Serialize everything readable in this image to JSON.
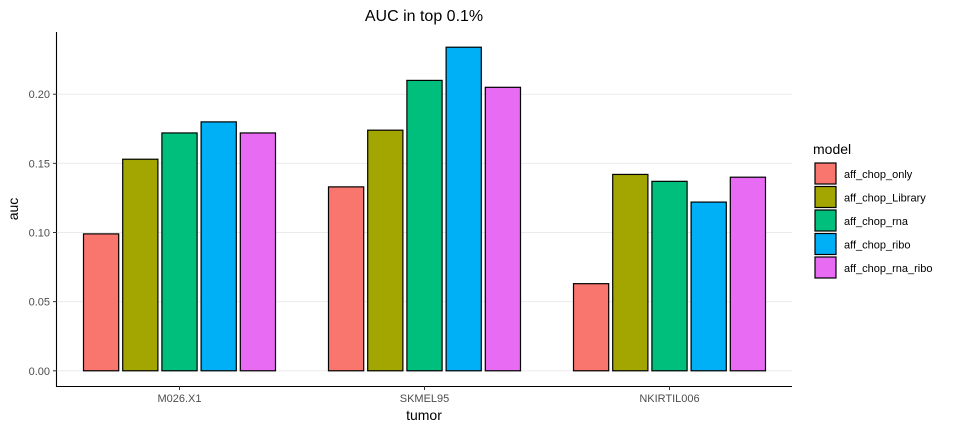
{
  "chart_data": {
    "type": "bar",
    "title": "AUC in top 0.1%",
    "xlabel": "tumor",
    "ylabel": "auc",
    "ylim": [
      -0.011,
      0.245
    ],
    "yticks": [
      "0.00",
      "0.05",
      "0.10",
      "0.15",
      "0.20"
    ],
    "ytick_values": [
      0,
      0.05,
      0.1,
      0.15,
      0.2
    ],
    "grid": "horizontal",
    "legend_position": "right",
    "legend_title": "model",
    "categories": [
      "M026.X1",
      "SKMEL95",
      "NKIRTIL006"
    ],
    "series": [
      {
        "name": "aff_chop_only",
        "color": "#F8766D",
        "values": [
          0.099,
          0.133,
          0.063
        ]
      },
      {
        "name": "aff_chop_Library",
        "color": "#A3A500",
        "values": [
          0.153,
          0.174,
          0.142
        ]
      },
      {
        "name": "aff_chop_rna",
        "color": "#00BF7D",
        "values": [
          0.172,
          0.21,
          0.137
        ]
      },
      {
        "name": "aff_chop_ribo",
        "color": "#00B0F6",
        "values": [
          0.18,
          0.234,
          0.122
        ]
      },
      {
        "name": "aff_chop_rna_ribo",
        "color": "#E76BF3",
        "values": [
          0.172,
          0.205,
          0.14
        ]
      }
    ]
  }
}
